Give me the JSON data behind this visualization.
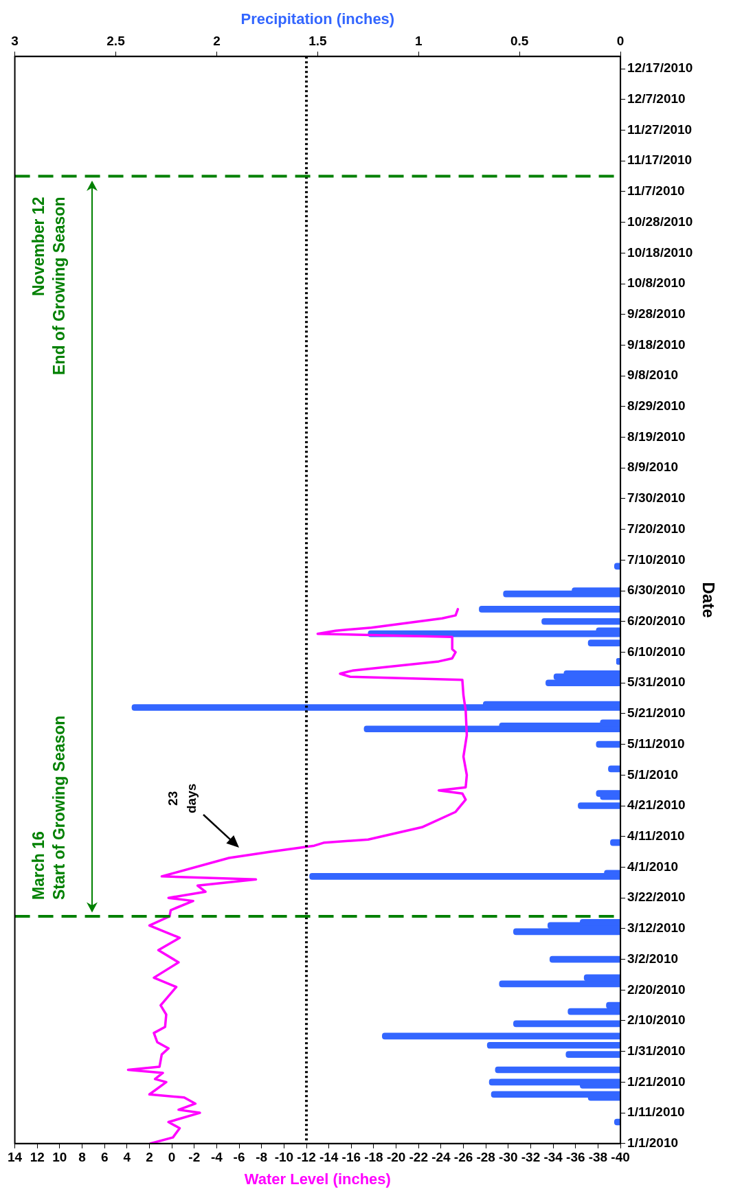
{
  "chart_data": {
    "type": "line",
    "orientation": "horizontal",
    "xlabel": "Water Level (inches)",
    "x2label": "Precipitation (inches)",
    "ylabel": "Date",
    "ylim": [
      "2010-01-01",
      "2010-12-21"
    ],
    "yticks": [
      {
        "value": "2010-01-01",
        "label": "1/1/2010"
      },
      {
        "value": "2010-01-11",
        "label": "1/11/2010"
      },
      {
        "value": "2010-01-21",
        "label": "1/21/2010"
      },
      {
        "value": "2010-01-31",
        "label": "1/31/2010"
      },
      {
        "value": "2010-02-10",
        "label": "2/10/2010"
      },
      {
        "value": "2010-02-20",
        "label": "2/20/2010"
      },
      {
        "value": "2010-03-02",
        "label": "3/2/2010"
      },
      {
        "value": "2010-03-12",
        "label": "3/12/2010"
      },
      {
        "value": "2010-03-22",
        "label": "3/22/2010"
      },
      {
        "value": "2010-04-01",
        "label": "4/1/2010"
      },
      {
        "value": "2010-04-11",
        "label": "4/11/2010"
      },
      {
        "value": "2010-04-21",
        "label": "4/21/2010"
      },
      {
        "value": "2010-05-01",
        "label": "5/1/2010"
      },
      {
        "value": "2010-05-11",
        "label": "5/11/2010"
      },
      {
        "value": "2010-05-21",
        "label": "5/21/2010"
      },
      {
        "value": "2010-05-31",
        "label": "5/31/2010"
      },
      {
        "value": "2010-06-10",
        "label": "6/10/2010"
      },
      {
        "value": "2010-06-20",
        "label": "6/20/2010"
      },
      {
        "value": "2010-06-30",
        "label": "6/30/2010"
      },
      {
        "value": "2010-07-10",
        "label": "7/10/2010"
      },
      {
        "value": "2010-07-20",
        "label": "7/20/2010"
      },
      {
        "value": "2010-07-30",
        "label": "7/30/2010"
      },
      {
        "value": "2010-08-09",
        "label": "8/9/2010"
      },
      {
        "value": "2010-08-19",
        "label": "8/19/2010"
      },
      {
        "value": "2010-08-29",
        "label": "8/29/2010"
      },
      {
        "value": "2010-09-08",
        "label": "9/8/2010"
      },
      {
        "value": "2010-09-18",
        "label": "9/18/2010"
      },
      {
        "value": "2010-09-28",
        "label": "9/28/2010"
      },
      {
        "value": "2010-10-08",
        "label": "10/8/2010"
      },
      {
        "value": "2010-10-18",
        "label": "10/18/2010"
      },
      {
        "value": "2010-10-28",
        "label": "10/28/2010"
      },
      {
        "value": "2010-11-07",
        "label": "11/7/2010"
      },
      {
        "value": "2010-11-17",
        "label": "11/17/2010"
      },
      {
        "value": "2010-11-27",
        "label": "11/27/2010"
      },
      {
        "value": "2010-12-07",
        "label": "12/7/2010"
      },
      {
        "value": "2010-12-17",
        "label": "12/17/2010"
      }
    ],
    "xlim": [
      14,
      -40
    ],
    "xticks": [
      14,
      12,
      10,
      8,
      6,
      4,
      2,
      0,
      -2,
      -4,
      -6,
      -8,
      -10,
      -12,
      -14,
      -16,
      -18,
      -20,
      -22,
      -24,
      -26,
      -28,
      -30,
      -32,
      -34,
      -36,
      -38,
      -40
    ],
    "x2lim": [
      3,
      0
    ],
    "x2ticks": [
      3,
      2.5,
      2,
      1.5,
      1,
      0.5,
      0
    ],
    "grid": false,
    "legend": false,
    "marker": "none",
    "series": [
      {
        "color": "#ff00ff",
        "x": [
          "2010-01-01",
          "2010-01-03",
          "2010-01-06",
          "2010-01-08",
          "2010-01-11",
          "2010-01-12",
          "2010-01-14",
          "2010-01-16",
          "2010-01-17",
          "2010-01-21",
          "2010-01-22",
          "2010-01-24",
          "2010-01-25",
          "2010-01-26",
          "2010-01-30",
          "2010-02-01",
          "2010-02-03",
          "2010-02-06",
          "2010-02-08",
          "2010-02-12",
          "2010-02-15",
          "2010-02-21",
          "2010-02-24",
          "2010-03-01",
          "2010-03-05",
          "2010-03-09",
          "2010-03-13",
          "2010-03-16",
          "2010-03-18",
          "2010-03-21",
          "2010-03-22",
          "2010-03-24",
          "2010-03-26",
          "2010-03-28",
          "2010-03-29",
          "2010-04-04",
          "2010-04-06",
          "2010-04-08",
          "2010-04-09",
          "2010-04-10",
          "2010-04-14",
          "2010-04-19",
          "2010-04-23",
          "2010-04-25",
          "2010-04-26",
          "2010-04-27",
          "2010-05-01",
          "2010-05-07",
          "2010-05-14",
          "2010-05-22",
          "2010-05-27",
          "2010-06-01",
          "2010-06-02",
          "2010-06-03",
          "2010-06-04",
          "2010-06-07",
          "2010-06-08",
          "2010-06-10",
          "2010-06-11",
          "2010-06-15",
          "2010-06-16",
          "2010-06-17",
          "2010-06-18",
          "2010-06-21",
          "2010-06-22",
          "2010-06-24"
        ],
        "values": [
          1.9,
          -0.1,
          -0.7,
          0.3,
          -2.5,
          -0.6,
          -2.1,
          -1.1,
          2.0,
          0.5,
          1.5,
          0.8,
          3.9,
          1.1,
          0.9,
          0.3,
          1.3,
          1.6,
          0.6,
          0.5,
          1.0,
          -0.4,
          1.6,
          -0.6,
          1.2,
          -0.7,
          2.0,
          0.2,
          0.1,
          -1.9,
          0.3,
          -3.0,
          -2.3,
          -7.5,
          0.9,
          -5.1,
          -8.8,
          -12.7,
          -13.6,
          -17.5,
          -22.3,
          -25.3,
          -26.2,
          -25.9,
          -23.8,
          -26.2,
          -26.3,
          -26.0,
          -26.3,
          -26.2,
          -26.0,
          -25.9,
          -15.9,
          -15.0,
          -16.1,
          -23.8,
          -25.0,
          -25.3,
          -25.0,
          -25.0,
          -13.0,
          -14.6,
          -17.8,
          -24.1,
          -25.3,
          -25.5
        ]
      },
      {
        "type": "bar",
        "color": "#3366ff",
        "axis": "x2",
        "x": [
          "2010-01-08",
          "2010-01-16",
          "2010-01-17",
          "2010-01-20",
          "2010-01-21",
          "2010-01-25",
          "2010-01-30",
          "2010-02-02",
          "2010-02-05",
          "2010-02-09",
          "2010-02-13",
          "2010-02-15",
          "2010-02-22",
          "2010-02-24",
          "2010-03-02",
          "2010-03-11",
          "2010-03-13",
          "2010-03-14",
          "2010-03-29",
          "2010-03-30",
          "2010-04-09",
          "2010-04-21",
          "2010-04-24",
          "2010-04-25",
          "2010-05-03",
          "2010-05-11",
          "2010-05-16",
          "2010-05-17",
          "2010-05-18",
          "2010-05-23",
          "2010-05-24",
          "2010-05-31",
          "2010-06-02",
          "2010-06-03",
          "2010-06-07",
          "2010-06-13",
          "2010-06-16",
          "2010-06-17",
          "2010-06-20",
          "2010-06-24",
          "2010-06-29",
          "2010-06-30",
          "2010-07-08"
        ],
        "values": [
          0.03,
          0.16,
          0.64,
          0.2,
          0.65,
          0.62,
          0.27,
          0.66,
          1.18,
          0.53,
          0.26,
          0.07,
          0.6,
          0.18,
          0.35,
          0.53,
          0.36,
          0.2,
          1.54,
          0.08,
          0.05,
          0.21,
          0.1,
          0.12,
          0.06,
          0.12,
          1.27,
          0.6,
          0.1,
          2.42,
          0.68,
          0.37,
          0.33,
          0.28,
          0.02,
          0.16,
          1.25,
          0.12,
          0.39,
          0.7,
          0.58,
          0.24,
          0.03
        ]
      }
    ],
    "ref_lines": [
      {
        "axis": "x",
        "value": -12,
        "color": "#000000",
        "line_style": "dotted"
      },
      {
        "axis": "y",
        "value": "2010-03-16",
        "label": "March 16\nStart of Growing Season",
        "color": "#008000",
        "line_style": "dashed"
      },
      {
        "axis": "y",
        "value": "2010-11-12",
        "label": "November 12\nEnd of Growing Season",
        "color": "#008000",
        "line_style": "dashed"
      }
    ],
    "annotations": [
      "23\ndays"
    ]
  }
}
